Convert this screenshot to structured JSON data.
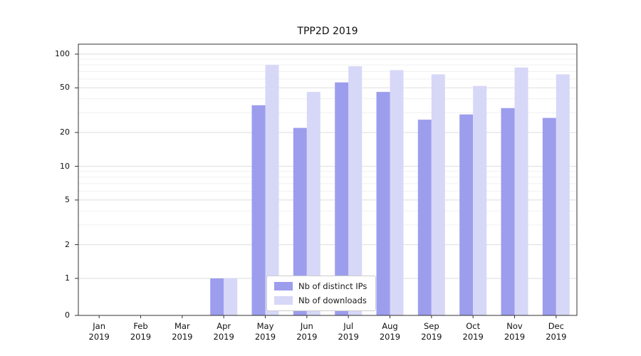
{
  "chart": {
    "title": "TPP2D 2019",
    "legend": {
      "items": [
        {
          "label": "Nb of distinct IPs",
          "color": "#9d9dee"
        },
        {
          "label": "Nb of downloads",
          "color": "#d7d7f8"
        }
      ]
    }
  },
  "chart_data": {
    "type": "bar",
    "title": "TPP2D 2019",
    "categories": [
      "Jan",
      "Feb",
      "Mar",
      "Apr",
      "May",
      "Jun",
      "Jul",
      "Aug",
      "Sep",
      "Oct",
      "Nov",
      "Dec"
    ],
    "year": "2019",
    "series": [
      {
        "name": "Nb of distinct IPs",
        "color": "#9d9dee",
        "values": [
          0,
          0,
          0,
          1,
          35,
          22,
          56,
          46,
          26,
          29,
          33,
          27
        ]
      },
      {
        "name": "Nb of downloads",
        "color": "#d7d7f8",
        "values": [
          0,
          0,
          0,
          1,
          80,
          46,
          78,
          72,
          66,
          52,
          76,
          66
        ]
      }
    ],
    "yscale": "symlog",
    "yticks": [
      0,
      1,
      2,
      5,
      10,
      20,
      50,
      100
    ],
    "minor_yticks": [
      3,
      4,
      6,
      7,
      8,
      9,
      30,
      40,
      60,
      70,
      80,
      90
    ],
    "ylim": [
      0,
      120
    ],
    "grid": "horizontal",
    "legend_position": "lower center (inside plot)"
  }
}
